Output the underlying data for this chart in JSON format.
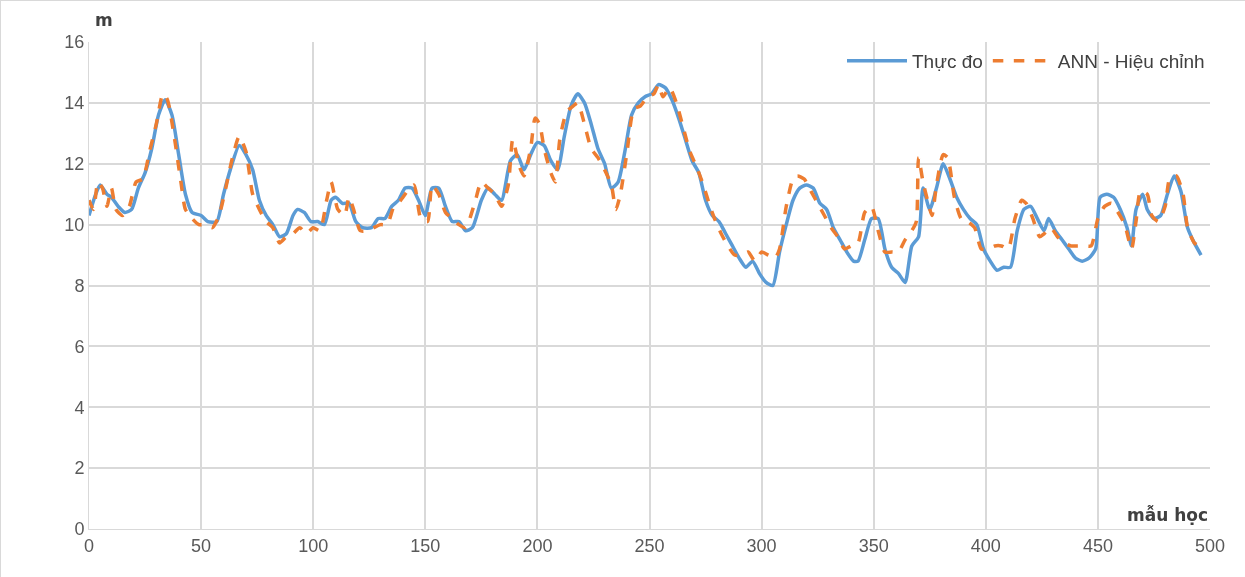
{
  "chart_data": {
    "type": "line",
    "xlabel": "mẫu học",
    "ylabel": "m",
    "xlim": [
      0,
      500
    ],
    "xticks": [
      0,
      50,
      100,
      150,
      200,
      250,
      300,
      350,
      400,
      450,
      500
    ],
    "ylim": [
      0,
      16
    ],
    "yticks": [
      0,
      2,
      4,
      6,
      8,
      10,
      12,
      14,
      16
    ],
    "grid": true,
    "legend": "top right",
    "marker": "none",
    "series": [
      {
        "name": "Thực đo",
        "color": "#5b9bd5",
        "line_style": "solid",
        "x": [
          0,
          3,
          5,
          8,
          10,
          13,
          16,
          19,
          22,
          25,
          28,
          31,
          34,
          37,
          40,
          43,
          46,
          50,
          53,
          57,
          60,
          63,
          67,
          70,
          73,
          76,
          79,
          82,
          85,
          88,
          91,
          93,
          96,
          99,
          102,
          105,
          108,
          110,
          113,
          116,
          119,
          122,
          126,
          129,
          132,
          135,
          138,
          141,
          144,
          147,
          150,
          153,
          156,
          159,
          162,
          165,
          168,
          171,
          175,
          178,
          181,
          184,
          188,
          191,
          194,
          197,
          200,
          203,
          206,
          209,
          212,
          215,
          218,
          221,
          224,
          227,
          230,
          233,
          236,
          239,
          242,
          245,
          248,
          251,
          254,
          257,
          260,
          263,
          266,
          269,
          272,
          275,
          278,
          281,
          284,
          287,
          290,
          293,
          296,
          299,
          302,
          305,
          308,
          311,
          314,
          317,
          320,
          323,
          326,
          329,
          332,
          335,
          338,
          341,
          343,
          346,
          349,
          352,
          355,
          358,
          361,
          364,
          367,
          370,
          372,
          375,
          378,
          381,
          384,
          387,
          390,
          393,
          396,
          399,
          402,
          405,
          408,
          411,
          414,
          417,
          420,
          423,
          426,
          428,
          431,
          434,
          437,
          440,
          443,
          446,
          449,
          451,
          454,
          457,
          460,
          463,
          465,
          467,
          470,
          472,
          475,
          478,
          481,
          484,
          487,
          490,
          493,
          496
        ],
        "values": [
          10.3,
          11.0,
          11.3,
          11.0,
          10.9,
          10.6,
          10.4,
          10.5,
          11.2,
          11.7,
          12.5,
          13.6,
          14.1,
          13.6,
          12.3,
          11.0,
          10.4,
          10.3,
          10.1,
          10.1,
          11.0,
          11.8,
          12.6,
          12.3,
          11.8,
          10.8,
          10.3,
          10.0,
          9.6,
          9.7,
          10.3,
          10.5,
          10.4,
          10.1,
          10.1,
          10.0,
          10.8,
          10.9,
          10.7,
          10.7,
          10.1,
          9.9,
          9.9,
          10.2,
          10.2,
          10.6,
          10.8,
          11.2,
          11.2,
          10.8,
          10.3,
          11.2,
          11.2,
          10.6,
          10.1,
          10.1,
          9.8,
          9.9,
          10.8,
          11.2,
          11.0,
          10.8,
          12.1,
          12.3,
          11.8,
          12.3,
          12.7,
          12.6,
          12.1,
          11.8,
          12.9,
          13.9,
          14.3,
          14.0,
          13.3,
          12.5,
          12.0,
          11.2,
          11.4,
          12.4,
          13.6,
          14.0,
          14.2,
          14.3,
          14.6,
          14.5,
          14.1,
          13.5,
          12.8,
          12.1,
          11.7,
          10.8,
          10.3,
          10.1,
          9.7,
          9.3,
          8.9,
          8.6,
          8.8,
          8.4,
          8.1,
          8.0,
          9.1,
          10.0,
          10.8,
          11.2,
          11.3,
          11.2,
          10.7,
          10.5,
          9.9,
          9.5,
          9.1,
          8.8,
          8.8,
          9.5,
          10.2,
          10.2,
          9.2,
          8.6,
          8.4,
          8.1,
          9.3,
          9.6,
          11.2,
          10.5,
          11.2,
          12.0,
          11.5,
          10.9,
          10.5,
          10.2,
          10.0,
          9.2,
          8.8,
          8.5,
          8.6,
          8.6,
          9.8,
          10.5,
          10.6,
          10.2,
          9.8,
          10.2,
          9.8,
          9.5,
          9.2,
          8.9,
          8.8,
          8.9,
          9.2,
          10.9,
          11.0,
          10.9,
          10.5,
          9.9,
          9.3,
          10.5,
          11.0,
          10.5,
          10.2,
          10.3,
          11.0,
          11.6,
          11.1,
          9.9,
          9.4,
          9.0
        ]
      },
      {
        "name": "ANN - Hiệu chỉnh",
        "color": "#ed7d31",
        "line_style": "dashed",
        "x": [
          0,
          2,
          4,
          6,
          8,
          10,
          12,
          15,
          18,
          21,
          24,
          27,
          30,
          33,
          35,
          38,
          41,
          43,
          46,
          49,
          52,
          55,
          58,
          61,
          64,
          67,
          70,
          73,
          76,
          79,
          82,
          85,
          88,
          91,
          94,
          97,
          100,
          103,
          106,
          108,
          111,
          114,
          116,
          118,
          121,
          124,
          127,
          130,
          133,
          136,
          139,
          142,
          145,
          148,
          151,
          153,
          156,
          159,
          162,
          165,
          168,
          172,
          175,
          178,
          181,
          184,
          187,
          189,
          192,
          194,
          197,
          199,
          201,
          203,
          206,
          208,
          210,
          213,
          216,
          218,
          221,
          224,
          227,
          230,
          233,
          235,
          237,
          240,
          243,
          246,
          249,
          252,
          254,
          256,
          259,
          262,
          265,
          268,
          271,
          274,
          277,
          279,
          282,
          285,
          288,
          291,
          294,
          297,
          300,
          303,
          306,
          308,
          311,
          314,
          316,
          319,
          322,
          325,
          328,
          331,
          334,
          337,
          340,
          343,
          346,
          349,
          352,
          355,
          358,
          361,
          364,
          367,
          369,
          370,
          372,
          374,
          376,
          378,
          381,
          383,
          386,
          389,
          392,
          395,
          398,
          401,
          404,
          407,
          410,
          413,
          416,
          418,
          421,
          424,
          426,
          429,
          432,
          435,
          438,
          441,
          444,
          447,
          450,
          453,
          456,
          459,
          462,
          465,
          467,
          469,
          472,
          474,
          477,
          480,
          482,
          485,
          488,
          490,
          493,
          495
        ],
        "values": [
          10.8,
          10.5,
          11.4,
          11.2,
          10.6,
          11.2,
          10.5,
          10.3,
          10.6,
          11.4,
          11.5,
          12.4,
          13.3,
          14.3,
          14.1,
          12.9,
          11.4,
          10.5,
          10.2,
          10.0,
          10.0,
          9.9,
          10.3,
          11.2,
          12.2,
          12.9,
          12.4,
          11.0,
          10.5,
          10.1,
          9.9,
          9.4,
          9.6,
          9.7,
          9.9,
          9.7,
          9.9,
          9.8,
          10.8,
          11.4,
          10.5,
          10.3,
          10.9,
          10.5,
          9.8,
          9.8,
          9.9,
          10.0,
          10.0,
          10.6,
          10.8,
          11.1,
          11.3,
          10.2,
          10.1,
          11.3,
          11.0,
          10.4,
          10.2,
          10.0,
          9.9,
          10.7,
          11.4,
          11.2,
          11.0,
          10.6,
          11.3,
          12.8,
          11.9,
          11.6,
          12.5,
          13.5,
          13.3,
          12.5,
          11.7,
          11.4,
          12.8,
          13.7,
          13.9,
          14.0,
          13.3,
          12.5,
          12.2,
          11.8,
          11.3,
          10.5,
          11.0,
          12.4,
          13.8,
          13.9,
          14.2,
          14.3,
          14.6,
          14.2,
          14.5,
          14.0,
          13.2,
          12.4,
          11.9,
          11.3,
          10.6,
          10.2,
          9.7,
          9.3,
          9.0,
          9.0,
          9.1,
          8.8,
          9.1,
          9.0,
          8.9,
          9.2,
          10.6,
          11.5,
          11.6,
          11.5,
          11.1,
          10.7,
          10.3,
          9.9,
          9.6,
          9.2,
          9.3,
          9.4,
          10.4,
          10.6,
          9.8,
          9.1,
          9.1,
          9.1,
          9.5,
          9.8,
          10.1,
          12.2,
          11.4,
          10.8,
          10.3,
          11.3,
          12.3,
          12.2,
          10.9,
          10.2,
          10.1,
          9.9,
          9.2,
          9.2,
          9.3,
          9.3,
          9.2,
          10.2,
          10.8,
          10.7,
          10.2,
          9.6,
          9.7,
          9.9,
          9.6,
          9.4,
          9.3,
          9.3,
          9.3,
          9.3,
          10.2,
          10.6,
          10.7,
          10.4,
          10.0,
          9.2,
          10.1,
          11.1,
          11.0,
          10.3,
          10.1,
          10.6,
          11.5,
          11.6,
          11.0,
          9.9,
          9.4,
          9.3
        ]
      }
    ]
  }
}
